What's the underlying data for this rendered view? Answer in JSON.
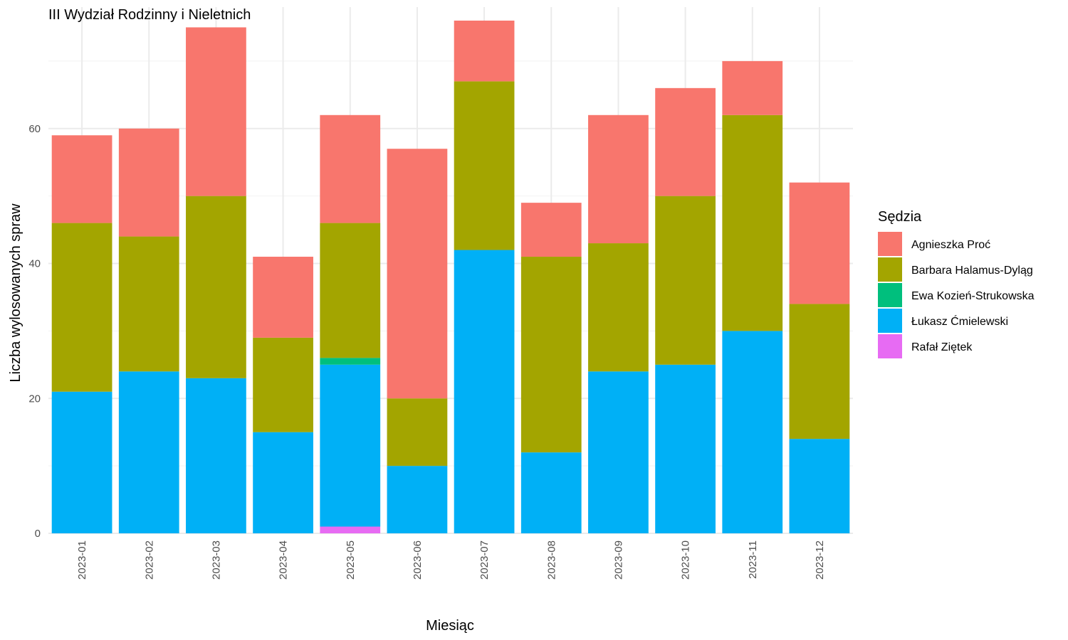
{
  "chart_data": {
    "type": "bar",
    "stacked": true,
    "title": "III Wydział Rodzinny i Nieletnich",
    "xlabel": "Miesiąc",
    "ylabel": "Liczba wylosowanych spraw",
    "ylim": [
      0,
      78
    ],
    "yticks": [
      0,
      20,
      40,
      60
    ],
    "grid": true,
    "legend_position": "right",
    "legend_title": "Sędzia",
    "categories": [
      "2023-01",
      "2023-02",
      "2023-03",
      "2023-04",
      "2023-05",
      "2023-06",
      "2023-07",
      "2023-08",
      "2023-09",
      "2023-10",
      "2023-11",
      "2023-12"
    ],
    "series": [
      {
        "name": "Rafał Ziętek",
        "color": "#E76BF3",
        "values": [
          0,
          0,
          0,
          0,
          1,
          0,
          0,
          0,
          0,
          0,
          0,
          0
        ]
      },
      {
        "name": "Łukasz Ćmielewski",
        "color": "#00B0F6",
        "values": [
          21,
          24,
          23,
          15,
          24,
          10,
          42,
          12,
          24,
          25,
          30,
          14
        ]
      },
      {
        "name": "Ewa Kozień-Strukowska",
        "color": "#00BF7D",
        "values": [
          0,
          0,
          0,
          0,
          1,
          0,
          0,
          0,
          0,
          0,
          0,
          0
        ]
      },
      {
        "name": "Barbara Halamus-Dyląg",
        "color": "#A3A500",
        "values": [
          25,
          20,
          27,
          14,
          20,
          10,
          25,
          29,
          19,
          25,
          32,
          20
        ]
      },
      {
        "name": "Agnieszka Proć",
        "color": "#F8766D",
        "values": [
          13,
          16,
          25,
          12,
          16,
          37,
          9,
          8,
          19,
          16,
          8,
          18
        ]
      }
    ],
    "legend_order": [
      "Agnieszka Proć",
      "Barbara Halamus-Dyląg",
      "Ewa Kozień-Strukowska",
      "Łukasz Ćmielewski",
      "Rafał Ziętek"
    ]
  }
}
